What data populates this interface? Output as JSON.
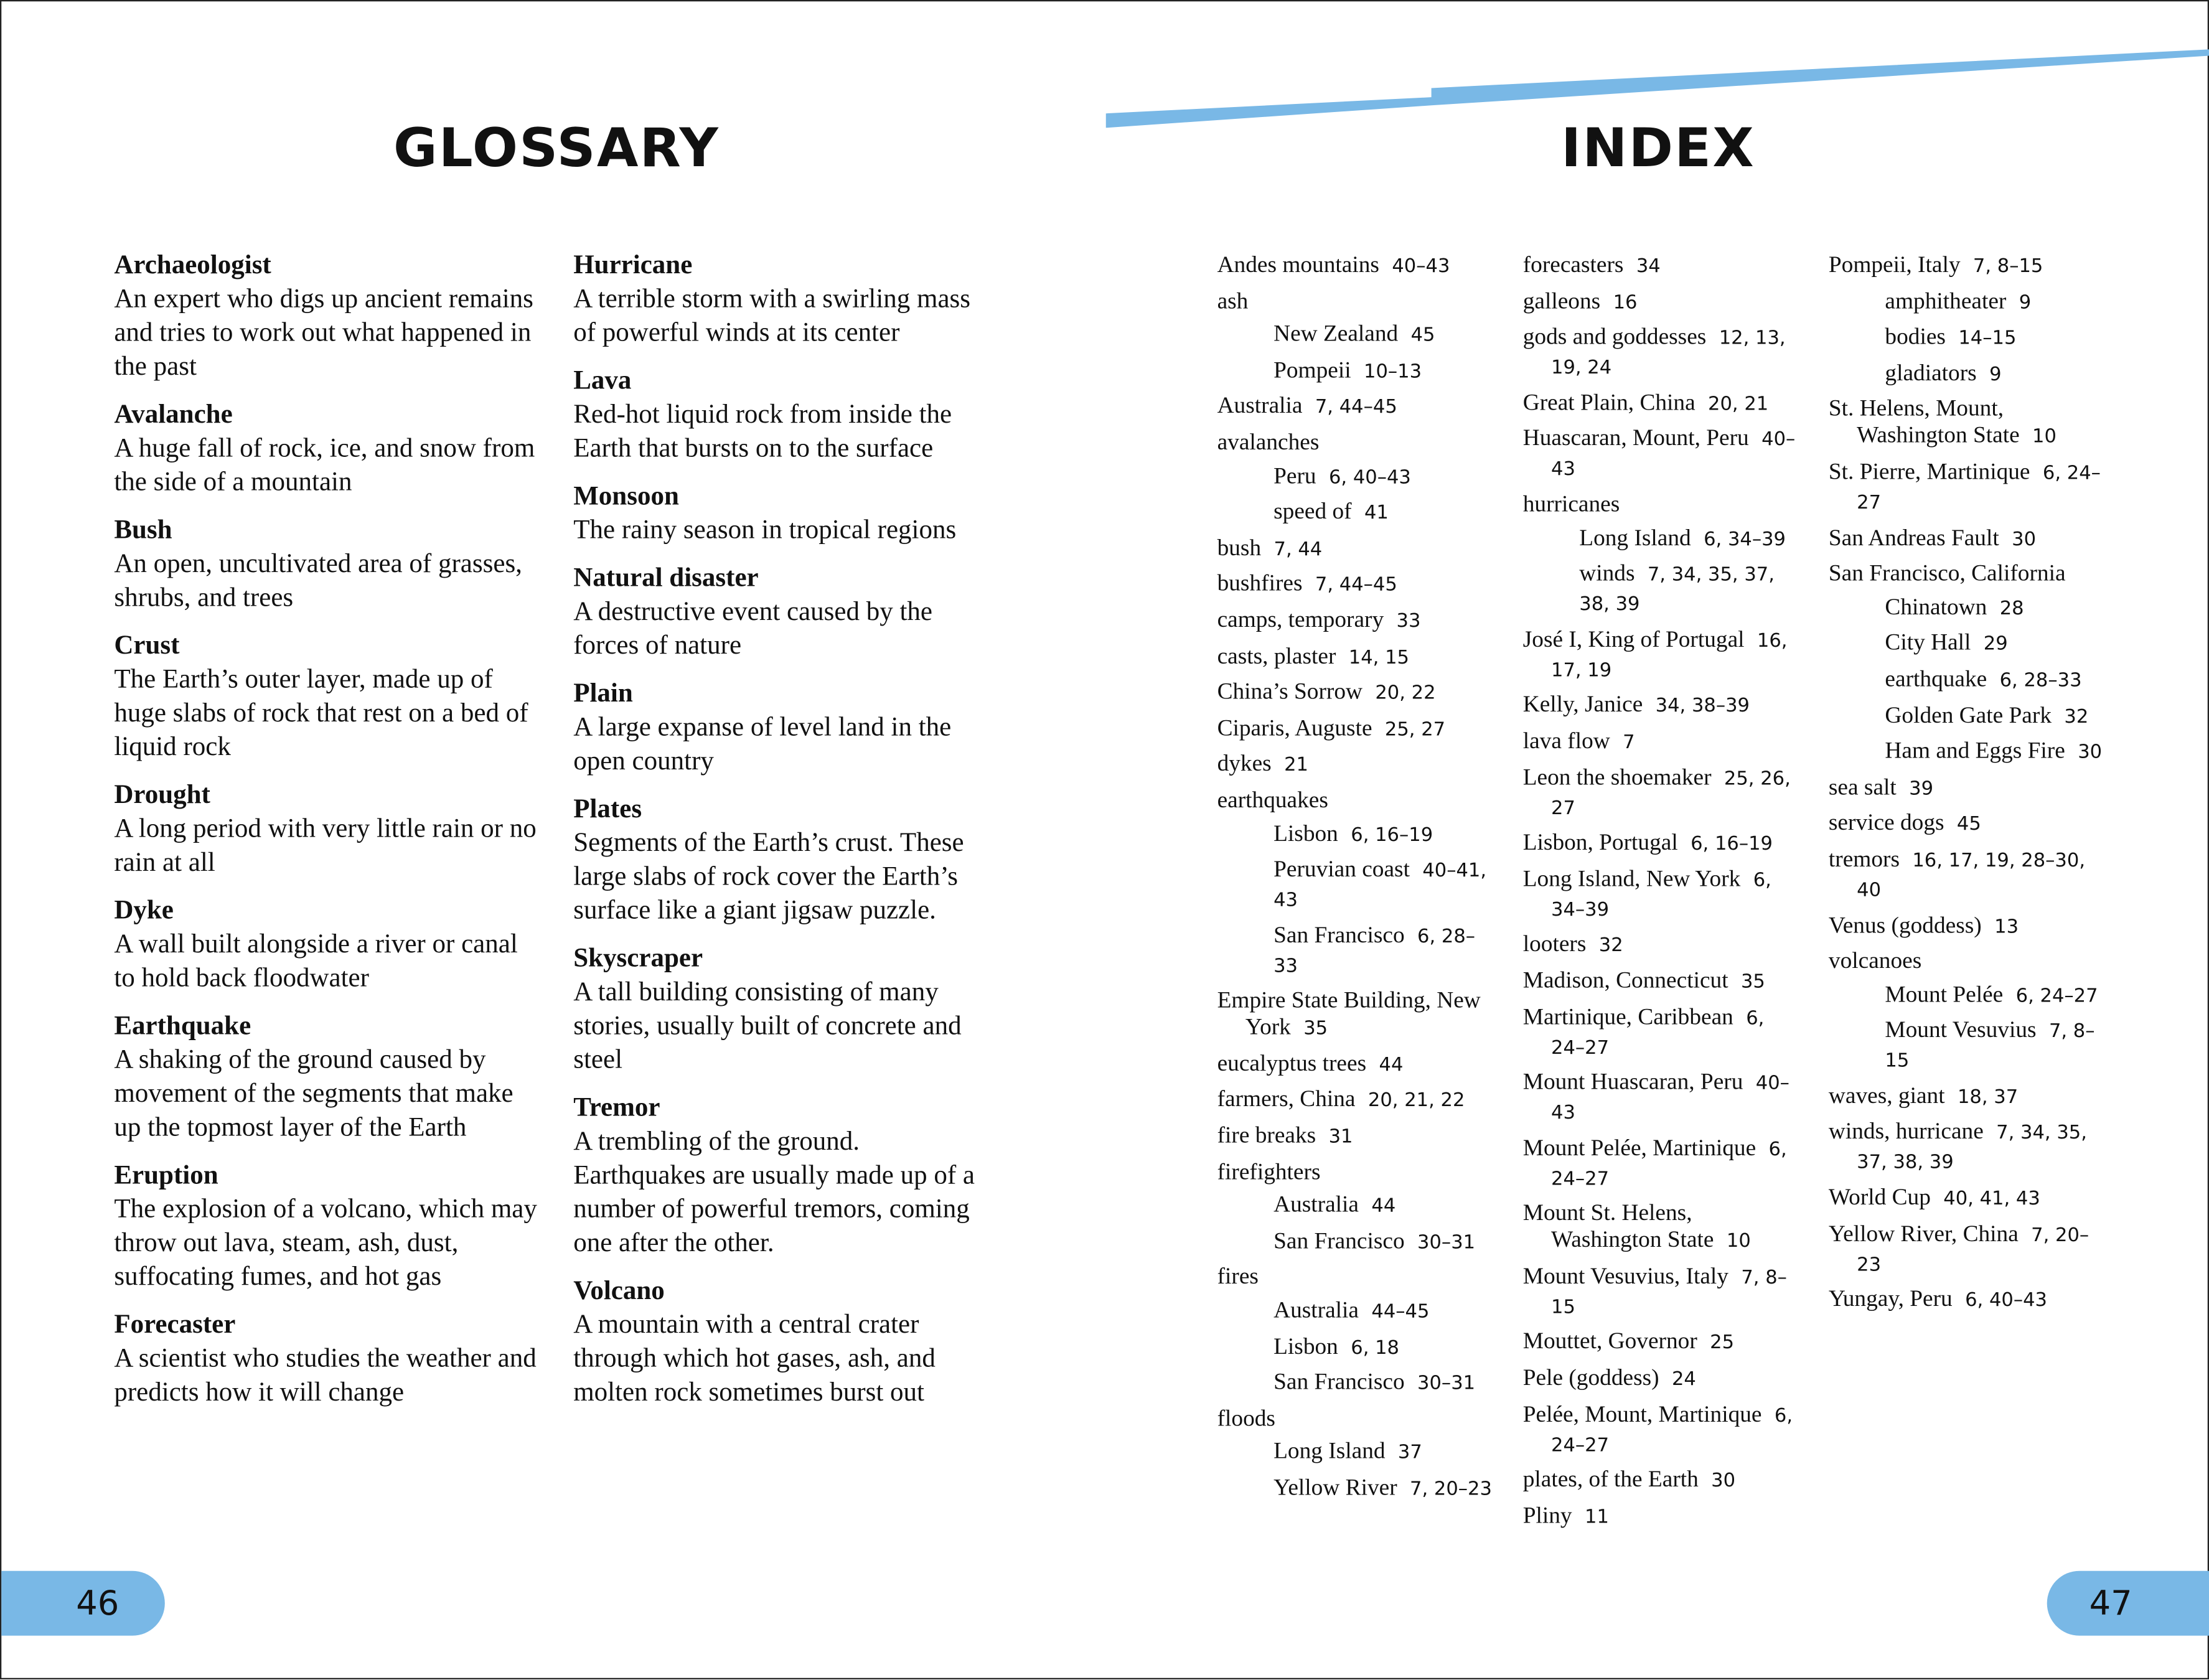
{
  "colors": {
    "accent": "#79b8e6",
    "text": "#111111"
  },
  "glossary": {
    "title": "GLOSSARY",
    "columns": [
      [
        {
          "term": "Archaeologist",
          "definition": "An expert who digs up ancient remains and tries to work out what happened in the past"
        },
        {
          "term": "Avalanche",
          "definition": "A huge fall of rock, ice, and snow from the side of a mountain"
        },
        {
          "term": "Bush",
          "definition": "An open, uncultivated area of grasses, shrubs, and trees"
        },
        {
          "term": "Crust",
          "definition": "The Earth’s outer layer, made up of huge slabs of rock that rest on a bed of liquid rock"
        },
        {
          "term": "Drought",
          "definition": "A long period with very little rain or no rain at all"
        },
        {
          "term": "Dyke",
          "definition": "A wall built alongside a river or canal to hold back floodwater"
        },
        {
          "term": "Earthquake",
          "definition": "A shaking of the ground caused by movement of the segments that make up the topmost layer of the Earth"
        },
        {
          "term": "Eruption",
          "definition": "The explosion of a volcano, which may throw out lava, steam, ash, dust, suffocating fumes, and hot gas"
        },
        {
          "term": "Forecaster",
          "definition": "A scientist who studies the weather and predicts how it will change"
        }
      ],
      [
        {
          "term": "Hurricane",
          "definition": "A terrible storm with a swirling mass of powerful winds at its center"
        },
        {
          "term": "Lava",
          "definition": "Red-hot liquid rock from inside the Earth that bursts on to the surface"
        },
        {
          "term": "Monsoon",
          "definition": "The rainy season in tropical regions"
        },
        {
          "term": "Natural disaster",
          "definition": "A destructive event caused by the forces of nature"
        },
        {
          "term": "Plain",
          "definition": "A large expanse of level land in the open country"
        },
        {
          "term": "Plates",
          "definition": "Segments of the Earth’s crust. These large slabs of rock cover the Earth’s surface like a giant jigsaw puzzle."
        },
        {
          "term": "Skyscraper",
          "definition": "A tall building consisting of many stories, usually built of concrete and steel"
        },
        {
          "term": "Tremor",
          "definition": "A trembling of the ground. Earthquakes are usually made up of a number of powerful tremors, coming one after the other."
        },
        {
          "term": "Volcano",
          "definition": "A mountain with a central crater through which hot gases, ash, and molten rock sometimes burst out"
        }
      ]
    ]
  },
  "index": {
    "title": "INDEX",
    "columns": [
      [
        {
          "term": "Andes mountains",
          "pages": "40–43",
          "level": 0
        },
        {
          "term": "ash",
          "pages": "",
          "level": 0
        },
        {
          "term": "New Zealand",
          "pages": "45",
          "level": 1
        },
        {
          "term": "Pompeii",
          "pages": "10–13",
          "level": 1
        },
        {
          "term": "Australia",
          "pages": "7, 44–45",
          "level": 0
        },
        {
          "term": "avalanches",
          "pages": "",
          "level": 0
        },
        {
          "term": "Peru",
          "pages": "6, 40–43",
          "level": 1
        },
        {
          "term": "speed of",
          "pages": "41",
          "level": 1
        },
        {
          "term": "bush",
          "pages": "7, 44",
          "level": 0
        },
        {
          "term": "bushfires",
          "pages": "7, 44–45",
          "level": 0
        },
        {
          "term": "camps, temporary",
          "pages": "33",
          "level": 0
        },
        {
          "term": "casts, plaster",
          "pages": "14, 15",
          "level": 0
        },
        {
          "term": "China’s Sorrow",
          "pages": "20, 22",
          "level": 0
        },
        {
          "term": "Ciparis, Auguste",
          "pages": "25, 27",
          "level": 0
        },
        {
          "term": "dykes",
          "pages": "21",
          "level": 0
        },
        {
          "term": "earthquakes",
          "pages": "",
          "level": 0
        },
        {
          "term": "Lisbon",
          "pages": "6, 16–19",
          "level": 1
        },
        {
          "term": "Peruvian coast",
          "pages": "40–41, 43",
          "level": 1
        },
        {
          "term": "San Francisco",
          "pages": "6, 28–33",
          "level": 1
        },
        {
          "term": "Empire State Building, New York",
          "pages": "35",
          "level": 0
        },
        {
          "term": "eucalyptus trees",
          "pages": "44",
          "level": 0
        },
        {
          "term": "farmers, China",
          "pages": "20, 21, 22",
          "level": 0
        },
        {
          "term": "fire breaks",
          "pages": "31",
          "level": 0
        },
        {
          "term": "firefighters",
          "pages": "",
          "level": 0
        },
        {
          "term": "Australia",
          "pages": "44",
          "level": 1
        },
        {
          "term": "San Francisco",
          "pages": "30–31",
          "level": 1
        },
        {
          "term": "fires",
          "pages": "",
          "level": 0
        },
        {
          "term": "Australia",
          "pages": "44–45",
          "level": 1
        },
        {
          "term": "Lisbon",
          "pages": "6, 18",
          "level": 1
        },
        {
          "term": "San Francisco",
          "pages": "30–31",
          "level": 1
        },
        {
          "term": "floods",
          "pages": "",
          "level": 0
        },
        {
          "term": "Long Island",
          "pages": "37",
          "level": 1
        },
        {
          "term": "Yellow River",
          "pages": "7, 20–23",
          "level": 1
        }
      ],
      [
        {
          "term": "forecasters",
          "pages": "34",
          "level": 0
        },
        {
          "term": "galleons",
          "pages": "16",
          "level": 0
        },
        {
          "term": "gods and goddesses",
          "pages": "12, 13, 19, 24",
          "level": 0
        },
        {
          "term": "Great Plain, China",
          "pages": "20, 21",
          "level": 0
        },
        {
          "term": "Huascaran, Mount, Peru",
          "pages": "40–43",
          "level": 0
        },
        {
          "term": "hurricanes",
          "pages": "",
          "level": 0
        },
        {
          "term": "Long Island",
          "pages": "6, 34–39",
          "level": 1
        },
        {
          "term": "winds",
          "pages": "7, 34, 35, 37, 38, 39",
          "level": 1
        },
        {
          "term": "José I, King of Portugal",
          "pages": "16, 17, 19",
          "level": 0
        },
        {
          "term": "Kelly, Janice",
          "pages": "34, 38–39",
          "level": 0
        },
        {
          "term": "lava flow",
          "pages": "7",
          "level": 0
        },
        {
          "term": "Leon the shoemaker",
          "pages": "25, 26, 27",
          "level": 0
        },
        {
          "term": "Lisbon, Portugal",
          "pages": "6, 16–19",
          "level": 0
        },
        {
          "term": "Long Island, New York",
          "pages": "6, 34–39",
          "level": 0
        },
        {
          "term": "looters",
          "pages": "32",
          "level": 0
        },
        {
          "term": "Madison, Connecticut",
          "pages": "35",
          "level": 0
        },
        {
          "term": "Martinique, Caribbean",
          "pages": "6, 24–27",
          "level": 0
        },
        {
          "term": "Mount Huascaran, Peru",
          "pages": "40–43",
          "level": 0
        },
        {
          "term": "Mount Pelée, Martinique",
          "pages": "6, 24–27",
          "level": 0
        },
        {
          "term": "Mount St. Helens, Washington State",
          "pages": "10",
          "level": 0
        },
        {
          "term": "Mount Vesuvius, Italy",
          "pages": "7, 8–15",
          "level": 0
        },
        {
          "term": "Mouttet, Governor",
          "pages": "25",
          "level": 0
        },
        {
          "term": "Pele (goddess)",
          "pages": "24",
          "level": 0
        },
        {
          "term": "Pelée, Mount, Martinique",
          "pages": "6, 24–27",
          "level": 0
        },
        {
          "term": "plates, of the Earth",
          "pages": "30",
          "level": 0
        },
        {
          "term": "Pliny",
          "pages": "11",
          "level": 0
        }
      ],
      [
        {
          "term": "Pompeii, Italy",
          "pages": "7, 8–15",
          "level": 0
        },
        {
          "term": "amphitheater",
          "pages": "9",
          "level": 1
        },
        {
          "term": "bodies",
          "pages": "14–15",
          "level": 1
        },
        {
          "term": "gladiators",
          "pages": "9",
          "level": 1
        },
        {
          "term": "St. Helens, Mount, Washington State",
          "pages": "10",
          "level": 0
        },
        {
          "term": "St. Pierre, Martinique",
          "pages": "6, 24–27",
          "level": 0
        },
        {
          "term": "San Andreas Fault",
          "pages": "30",
          "level": 0
        },
        {
          "term": "San Francisco, California",
          "pages": "",
          "level": 0
        },
        {
          "term": "Chinatown",
          "pages": "28",
          "level": 1
        },
        {
          "term": "City Hall",
          "pages": "29",
          "level": 1
        },
        {
          "term": "earthquake",
          "pages": "6, 28–33",
          "level": 1
        },
        {
          "term": "Golden Gate Park",
          "pages": "32",
          "level": 1
        },
        {
          "term": "Ham and Eggs Fire",
          "pages": "30",
          "level": 1
        },
        {
          "term": "sea salt",
          "pages": "39",
          "level": 0
        },
        {
          "term": "service dogs",
          "pages": "45",
          "level": 0
        },
        {
          "term": "tremors",
          "pages": "16, 17, 19, 28–30, 40",
          "level": 0
        },
        {
          "term": "Venus (goddess)",
          "pages": "13",
          "level": 0
        },
        {
          "term": "volcanoes",
          "pages": "",
          "level": 0
        },
        {
          "term": "Mount Pelée",
          "pages": "6, 24–27",
          "level": 1
        },
        {
          "term": "Mount Vesuvius",
          "pages": "7, 8–15",
          "level": 1
        },
        {
          "term": "waves, giant",
          "pages": "18, 37",
          "level": 0
        },
        {
          "term": "winds, hurricane",
          "pages": "7, 34, 35, 37, 38, 39",
          "level": 0
        },
        {
          "term": "World Cup",
          "pages": "40, 41, 43",
          "level": 0
        },
        {
          "term": "Yellow River, China",
          "pages": "7, 20–23",
          "level": 0
        },
        {
          "term": "Yungay, Peru",
          "pages": "6, 40–43",
          "level": 0
        }
      ]
    ]
  },
  "page_numbers": {
    "left": "46",
    "right": "47"
  }
}
